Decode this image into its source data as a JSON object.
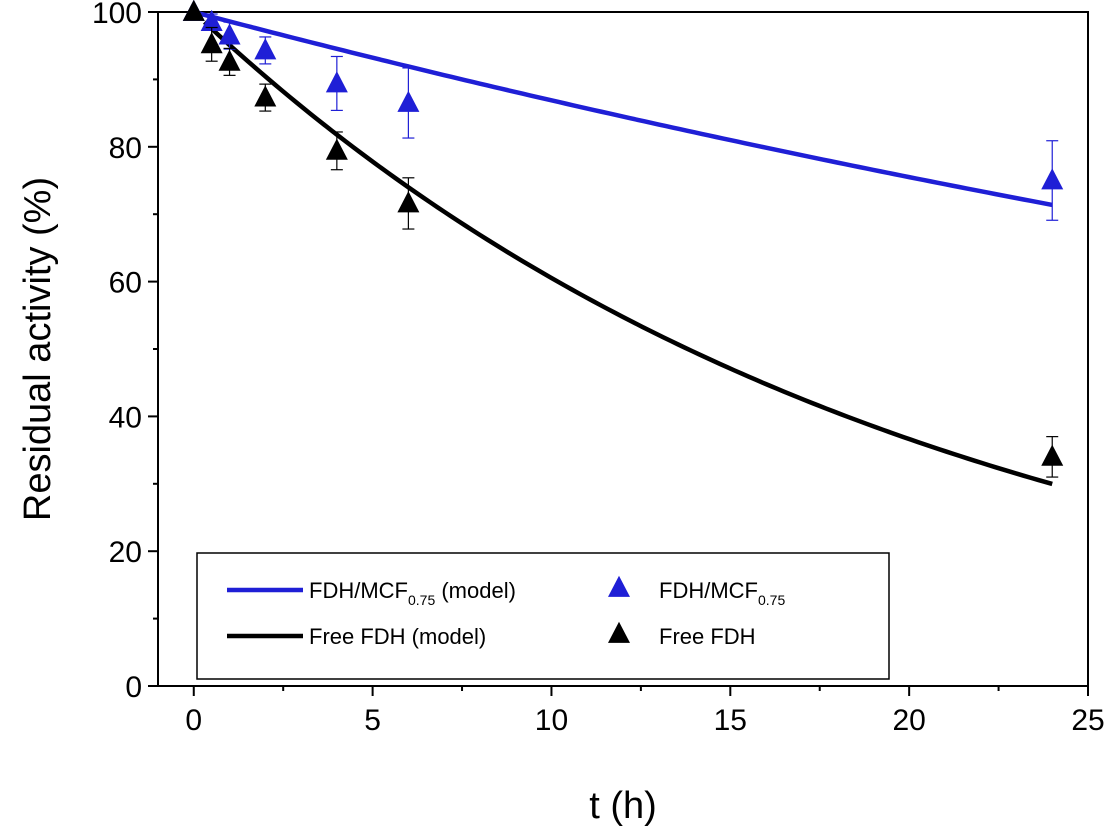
{
  "chart_data": {
    "type": "scatter",
    "xlabel": "t (h)",
    "ylabel": "Residual activity (%)",
    "xlim": [
      -1,
      25
    ],
    "ylim": [
      0,
      100
    ],
    "xticks": [
      0,
      5,
      10,
      15,
      20,
      25
    ],
    "yticks": [
      0,
      20,
      40,
      60,
      80,
      100
    ],
    "legend_position": "bottom-left",
    "series": [
      {
        "name": "FDH/MCF0.75 (model)",
        "legend_main": "FDH/MCF",
        "legend_sub": "0.75",
        "legend_suffix": " (model)",
        "kind": "line",
        "color": "#1f1fd6",
        "model_k": 0.01405,
        "x_start": 0,
        "x_end": 24
      },
      {
        "name": "FDH/MCF0.75",
        "legend_main": "FDH/MCF",
        "legend_sub": "0.75",
        "legend_suffix": "",
        "kind": "marker",
        "color": "#1f1fd6",
        "x": [
          0,
          0.5,
          1,
          2,
          4,
          6,
          24
        ],
        "y": [
          100,
          98.5,
          96.5,
          94.3,
          89.4,
          86.5,
          75
        ],
        "err": [
          0,
          1.2,
          2.0,
          2.0,
          4.0,
          5.2,
          5.9
        ]
      },
      {
        "name": "Free FDH (model)",
        "legend_main": "Free FDH (model)",
        "legend_sub": "",
        "legend_suffix": "",
        "kind": "line",
        "color": "#000000",
        "model_k": 0.0502,
        "x_start": 0.3,
        "x_end": 24
      },
      {
        "name": "Free FDH",
        "legend_main": "Free FDH",
        "legend_sub": "",
        "legend_suffix": "",
        "kind": "marker",
        "color": "#000000",
        "x": [
          0,
          0.5,
          1,
          2,
          4,
          6,
          24
        ],
        "y": [
          100,
          95.2,
          92.6,
          87.3,
          79.4,
          71.6,
          34
        ],
        "err": [
          0,
          2.5,
          2.0,
          2.0,
          2.8,
          3.8,
          3.0
        ]
      }
    ]
  }
}
